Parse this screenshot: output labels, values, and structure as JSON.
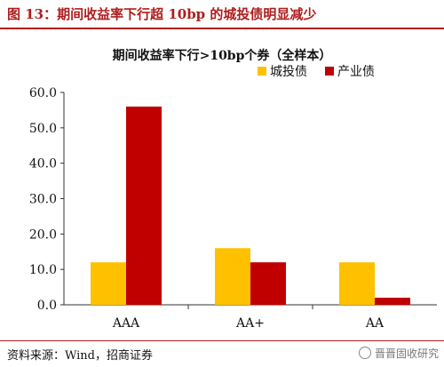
{
  "figure": {
    "title": "图 13：期间收益率下行超 10bp 的城投债明显减少"
  },
  "source": "资料来源：Wind，招商证券",
  "watermark": "晋晋固收研究",
  "colors": {
    "header_red": "#b01c1c",
    "series_1": "#ffc000",
    "series_2": "#c00000"
  },
  "chart_data": {
    "type": "bar",
    "title": "期间收益率下行>10bp个券（全样本）",
    "categories": [
      "AAA",
      "AA+",
      "AA"
    ],
    "series": [
      {
        "name": "城投债",
        "values": [
          12,
          16,
          12
        ],
        "color": "#ffc000"
      },
      {
        "name": "产业债",
        "values": [
          56,
          12,
          2
        ],
        "color": "#c00000"
      }
    ],
    "ylim": [
      0,
      60
    ],
    "yticks": [
      "0.0",
      "10.0",
      "20.0",
      "30.0",
      "40.0",
      "50.0",
      "60.0"
    ],
    "xlabel": "",
    "ylabel": "",
    "legend_position": "top-right",
    "grid": false
  }
}
